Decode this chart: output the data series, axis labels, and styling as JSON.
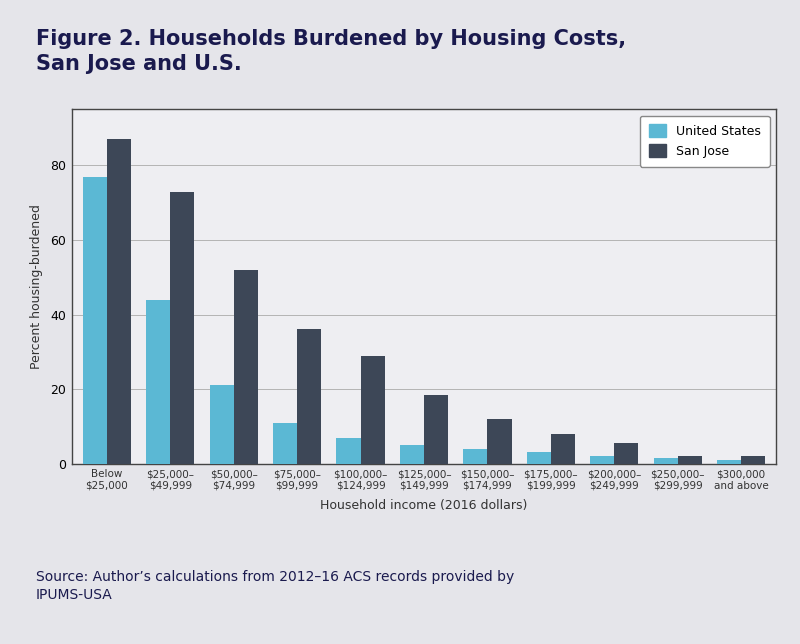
{
  "title_line1": "Figure 2. Households Burdened by Housing Costs,",
  "title_line2": "San Jose and U.S.",
  "categories": [
    "Below\n$25,000",
    "$25,000–\n$49,999",
    "$50,000–\n$74,999",
    "$75,000–\n$99,999",
    "$100,000–\n$124,999",
    "$125,000–\n$149,999",
    "$150,000–\n$174,999",
    "$175,000–\n$199,999",
    "$200,000–\n$249,999",
    "$250,000–\n$299,999",
    "$300,000\nand above"
  ],
  "us_values": [
    77,
    44,
    21,
    11,
    7,
    5,
    4,
    3,
    2,
    1.5,
    1
  ],
  "sj_values": [
    87,
    73,
    52,
    36,
    29,
    18.5,
    12,
    8,
    5.5,
    2,
    2
  ],
  "us_color": "#5BB8D4",
  "sj_color": "#3D4757",
  "xlabel": "Household income (2016 dollars)",
  "ylabel": "Percent housing-burdened",
  "ylim": [
    0,
    95
  ],
  "yticks": [
    0,
    20,
    40,
    60,
    80
  ],
  "legend_labels": [
    "United States",
    "San Jose"
  ],
  "source_text": "Source: Author’s calculations from 2012–16 ACS records provided by\nIPUMS-USA",
  "background_color": "#E5E5EA",
  "plot_background": "#EEEEF2",
  "title_color": "#1a1a4e",
  "source_color": "#1a1a4e",
  "grid_color": "#aaaaaa",
  "spine_color": "#444444"
}
